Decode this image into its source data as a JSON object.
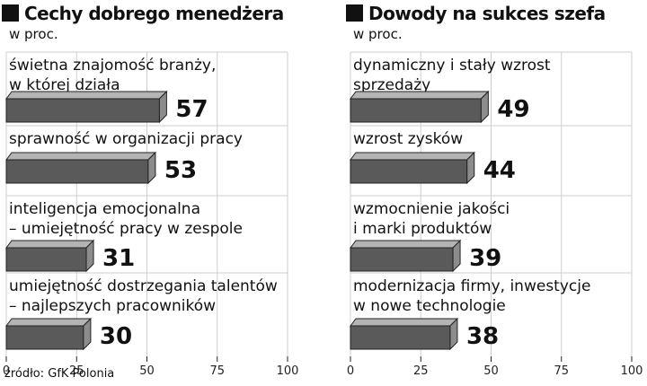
{
  "chart_data": [
    {
      "type": "bar",
      "title": "Cechy dobrego menedżera",
      "subtitle": "w proc.",
      "categories": [
        [
          "świetna znajomość branży,",
          "w której działa"
        ],
        [
          "sprawność w organizacji pracy"
        ],
        [
          "inteligencja emocjonalna",
          "– umiejętność pracy w zespole"
        ],
        [
          "umiejętność dostrzegania talentów",
          "– najlepszych pracowników"
        ]
      ],
      "values": [
        57,
        53,
        31,
        30
      ],
      "xlim": [
        0,
        100
      ],
      "xticks": [
        "0",
        "25",
        "50",
        "75",
        "100"
      ],
      "grid": true,
      "colors": {
        "bar_front": "#5a5a5a",
        "bar_top": "#b4b4b4",
        "bar_side": "#8c8c8c",
        "grid": "#cfcfcf"
      }
    },
    {
      "type": "bar",
      "title": "Dowody na sukces szefa",
      "subtitle": "w proc.",
      "categories": [
        [
          "dynamiczny i stały wzrost",
          "sprzedaży"
        ],
        [
          "wzrost zysków"
        ],
        [
          "wzmocnienie jakości",
          "i marki produktów"
        ],
        [
          "modernizacja firmy, inwestycje",
          "w nowe technologie"
        ]
      ],
      "values": [
        49,
        44,
        39,
        38
      ],
      "xlim": [
        0,
        100
      ],
      "xticks": [
        "0",
        "25",
        "50",
        "75",
        "100"
      ],
      "grid": true,
      "colors": {
        "bar_front": "#5a5a5a",
        "bar_top": "#b4b4b4",
        "bar_side": "#8c8c8c",
        "grid": "#cfcfcf"
      }
    }
  ],
  "source": "źródło: GfK Polonia"
}
